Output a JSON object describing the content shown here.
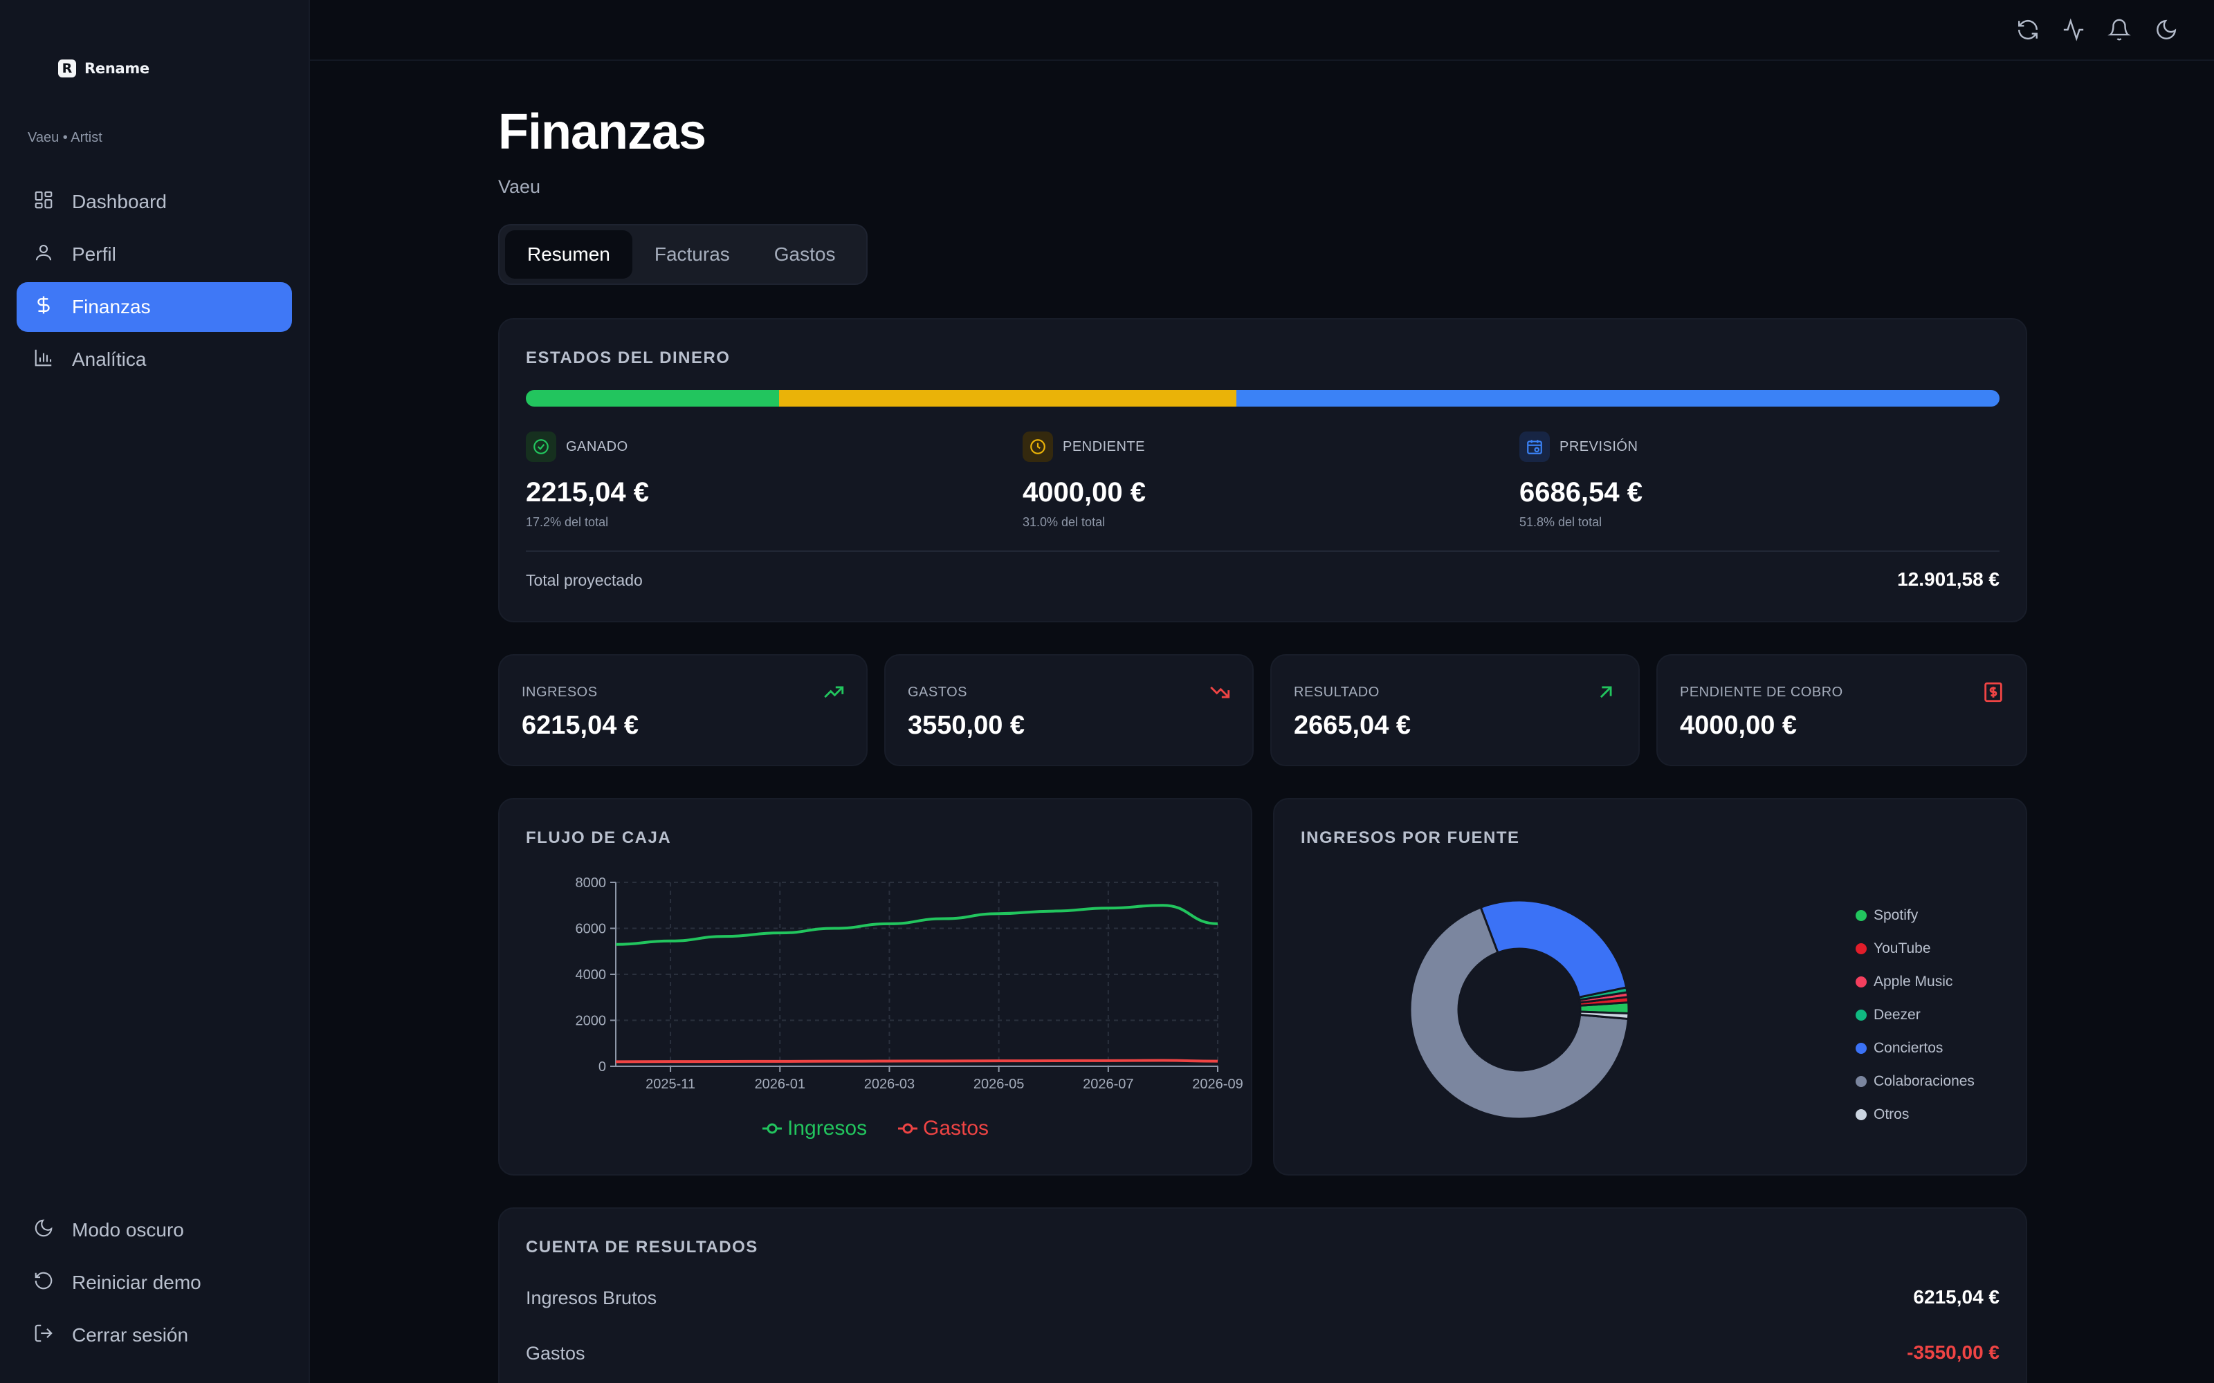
{
  "app": {
    "logo_mark": "R",
    "logo_text": "Rename",
    "user_label": "Vaeu • Artist"
  },
  "sidebar": {
    "items": [
      {
        "label": "Dashboard",
        "icon": "dashboard-icon",
        "active": false
      },
      {
        "label": "Perfil",
        "icon": "user-icon",
        "active": false
      },
      {
        "label": "Finanzas",
        "icon": "dollar-icon",
        "active": true
      },
      {
        "label": "Analítica",
        "icon": "bar-chart-icon",
        "active": false
      }
    ],
    "bottom": [
      {
        "label": "Modo oscuro",
        "icon": "moon-icon"
      },
      {
        "label": "Reiniciar demo",
        "icon": "reset-icon"
      },
      {
        "label": "Cerrar sesión",
        "icon": "logout-icon"
      }
    ]
  },
  "topbar": {
    "icons": [
      "refresh-icon",
      "activity-icon",
      "bell-icon",
      "moon-icon"
    ]
  },
  "page": {
    "title": "Finanzas",
    "subtitle": "Vaeu",
    "tabs": [
      {
        "label": "Resumen",
        "active": true
      },
      {
        "label": "Facturas",
        "active": false
      },
      {
        "label": "Gastos",
        "active": false
      }
    ]
  },
  "money_states": {
    "title": "ESTADOS DEL DINERO",
    "states": [
      {
        "label": "GANADO",
        "value": "2215,04 €",
        "share": "17.2% del total",
        "fraction": 0.172,
        "color": "#22c55e",
        "icon": "check-circle-icon"
      },
      {
        "label": "PENDIENTE",
        "value": "4000,00 €",
        "share": "31.0% del total",
        "fraction": 0.31,
        "color": "#eab308",
        "icon": "clock-icon"
      },
      {
        "label": "PREVISIÓN",
        "value": "6686,54 €",
        "share": "51.8% del total",
        "fraction": 0.518,
        "color": "#3b82f6",
        "icon": "calendar-icon"
      }
    ],
    "total_label": "Total proyectado",
    "total_value": "12.901,58 €"
  },
  "metrics": [
    {
      "label": "INGRESOS",
      "value": "6215,04 €",
      "icon": "trending-up-icon",
      "color": "#22c55e"
    },
    {
      "label": "GASTOS",
      "value": "3550,00 €",
      "icon": "trending-down-icon",
      "color": "#ef4444"
    },
    {
      "label": "RESULTADO",
      "value": "2665,04 €",
      "icon": "arrow-up-right-icon",
      "color": "#22c55e"
    },
    {
      "label": "PENDIENTE DE COBRO",
      "value": "4000,00 €",
      "icon": "receipt-icon",
      "color": "#ef4444"
    }
  ],
  "cashflow": {
    "title": "FLUJO DE CAJA",
    "chart_data": {
      "type": "line",
      "x": [
        "2025-10",
        "2025-11",
        "2025-12",
        "2026-01",
        "2026-02",
        "2026-03",
        "2026-04",
        "2026-05",
        "2026-06",
        "2026-07",
        "2026-08",
        "2026-09"
      ],
      "x_tick_labels": [
        "2025-11",
        "2026-01",
        "2026-03",
        "2026-05",
        "2026-07",
        "2026-09"
      ],
      "y_ticks": [
        0,
        2000,
        4000,
        6000,
        8000
      ],
      "ylim": [
        0,
        8000
      ],
      "grid": true,
      "legend_position": "bottom",
      "series": [
        {
          "name": "Ingresos",
          "color": "#22c55e",
          "values": [
            5300,
            5450,
            5650,
            5800,
            6000,
            6200,
            6420,
            6640,
            6750,
            6880,
            7000,
            6200
          ]
        },
        {
          "name": "Gastos",
          "color": "#ef4444",
          "values": [
            200,
            205,
            210,
            215,
            220,
            225,
            230,
            235,
            240,
            245,
            255,
            220
          ]
        }
      ]
    }
  },
  "income_sources": {
    "title": "INGRESOS POR FUENTE",
    "chart_data": {
      "type": "pie",
      "legend_position": "right",
      "slices": [
        {
          "name": "Spotify",
          "value": 1.6,
          "color": "#22c55e"
        },
        {
          "name": "YouTube",
          "value": 0.8,
          "color": "#e11d2a"
        },
        {
          "name": "Apple Music",
          "value": 0.7,
          "color": "#f43f5e"
        },
        {
          "name": "Deezer",
          "value": 0.7,
          "color": "#10b981"
        },
        {
          "name": "Conciertos",
          "value": 27.5,
          "color": "#3b72f6"
        },
        {
          "name": "Colaboraciones",
          "value": 67.9,
          "color": "#7b869f"
        },
        {
          "name": "Otros",
          "value": 0.8,
          "color": "#cbd5e1"
        }
      ]
    }
  },
  "results": {
    "title": "CUENTA DE RESULTADOS",
    "rows": [
      {
        "label": "Ingresos Brutos",
        "value": "6215,04 €",
        "color": "#ffffff"
      },
      {
        "label": "Gastos",
        "value": "-3550,00 €",
        "color": "#ef4444"
      }
    ]
  }
}
